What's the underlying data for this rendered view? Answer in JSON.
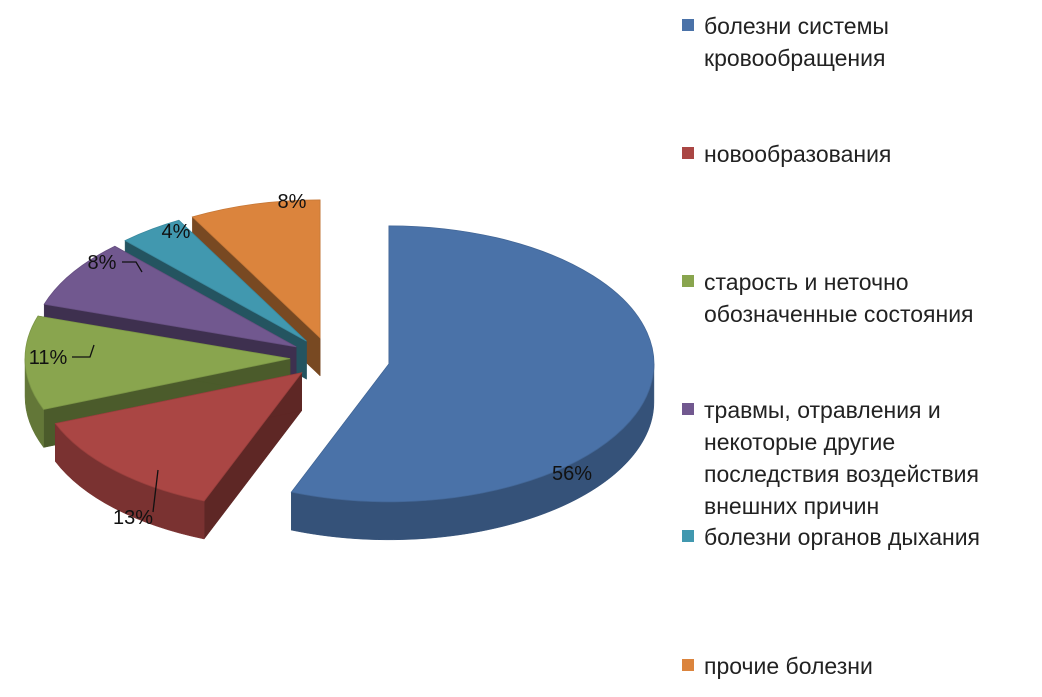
{
  "chart_data": {
    "type": "pie",
    "style": "3d-exploded",
    "title": "",
    "slices": [
      {
        "label": "болезни системы\nкровообращения",
        "value": 56,
        "value_label": "56%",
        "color": "#4a72a8"
      },
      {
        "label": "новообразования",
        "value": 13,
        "value_label": "13%",
        "color": "#aa4644"
      },
      {
        "label": "старость и неточно\nобозначенные состояния",
        "value": 11,
        "value_label": "11%",
        "color": "#89a54e"
      },
      {
        "label": "травмы, отравления и\nнекоторые другие\nпоследствия воздействия\nвнешних причин",
        "value": 8,
        "value_label": "8%",
        "color": "#71588f"
      },
      {
        "label": "болезни органов дыхания",
        "value": 4,
        "value_label": "4%",
        "color": "#4198af"
      },
      {
        "label": "прочие болезни",
        "value": 8,
        "value_label": "8%",
        "color": "#db843d"
      }
    ],
    "legend_position": "right"
  }
}
